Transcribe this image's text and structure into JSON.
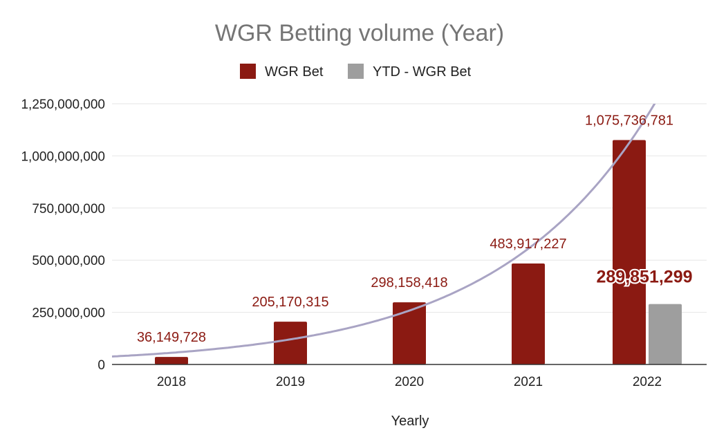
{
  "chart_data": {
    "type": "bar",
    "title": "WGR Betting volume (Year)",
    "xlabel": "Yearly",
    "ylabel": "",
    "categories": [
      "2018",
      "2019",
      "2020",
      "2021",
      "2022"
    ],
    "series": [
      {
        "name": "WGR Bet",
        "color": "#8b1a12",
        "values": [
          36149728,
          205170315,
          298158418,
          483917227,
          1075736781
        ],
        "labels": [
          "36,149,728",
          "205,170,315",
          "298,158,418",
          "483,917,227",
          "1,075,736,781"
        ]
      },
      {
        "name": "YTD - WGR Bet",
        "color": "#9e9e9e",
        "values": [
          null,
          null,
          null,
          null,
          289851299
        ],
        "labels": [
          "",
          "",
          "",
          "",
          "289,851,299"
        ]
      }
    ],
    "yticks": [
      0,
      250000000,
      500000000,
      750000000,
      1000000000,
      1250000000
    ],
    "ytick_labels": [
      "0",
      "250,000,000",
      "500,000,000",
      "750,000,000",
      "1,000,000,000",
      "1,250,000,000"
    ],
    "ylim": [
      0,
      1250000000
    ],
    "trendline": {
      "type": "exponential",
      "color": "#a9a4c4"
    },
    "grid": true,
    "legend": "top-center"
  }
}
